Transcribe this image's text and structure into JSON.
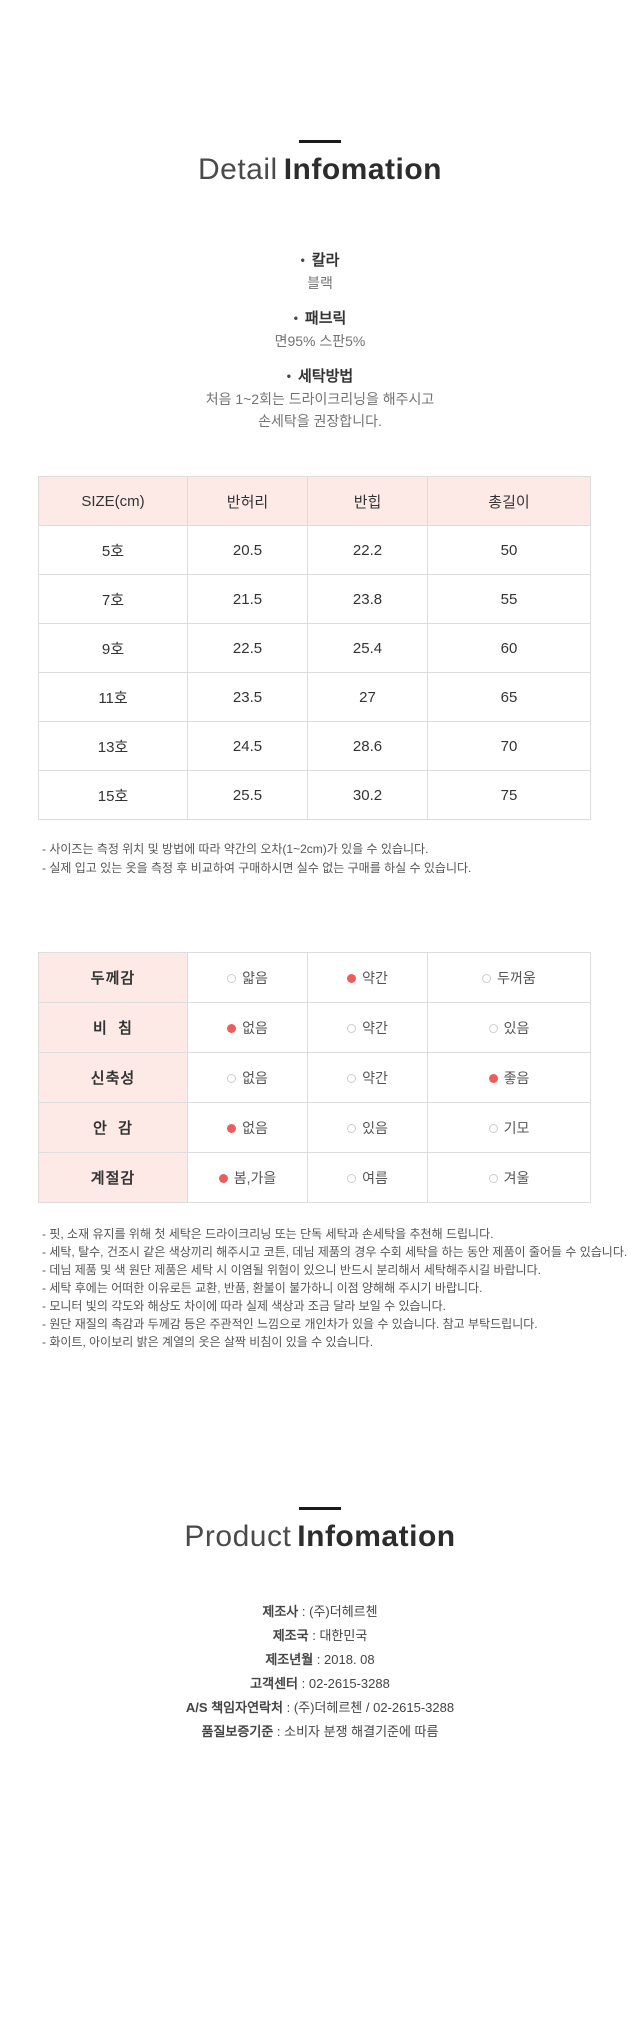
{
  "colors": {
    "header_pink": "#fdeae6",
    "dot_red": "#f05c5c",
    "border_gray": "#dddddd"
  },
  "detail_section": {
    "title": {
      "light": "Detail",
      "bold": "Infomation"
    },
    "bullet_char": "•",
    "items": [
      {
        "label": "칼라",
        "values": [
          "블랙"
        ]
      },
      {
        "label": "패브릭",
        "values": [
          "면95% 스판5%"
        ]
      },
      {
        "label": "세탁방법",
        "values": [
          "처음 1~2회는 드라이크리닝을 해주시고",
          "손세탁을 권장합니다."
        ]
      }
    ]
  },
  "size_table": {
    "headers": [
      "SIZE(cm)",
      "반허리",
      "반힙",
      "총길이"
    ],
    "rows": [
      [
        "5호",
        "20.5",
        "22.2",
        "50"
      ],
      [
        "7호",
        "21.5",
        "23.8",
        "55"
      ],
      [
        "9호",
        "22.5",
        "25.4",
        "60"
      ],
      [
        "11호",
        "23.5",
        "27",
        "65"
      ],
      [
        "13호",
        "24.5",
        "28.6",
        "70"
      ],
      [
        "15호",
        "25.5",
        "30.2",
        "75"
      ]
    ],
    "notes": [
      "- 사이즈는 측정 위치 및 방법에 따라 약간의 오차(1~2cm)가 있을 수 있습니다.",
      "- 실제 입고 있는 옷을 측정 후 비교하여 구매하시면 실수 없는 구매를 하실 수 있습니다."
    ]
  },
  "attribute_table": {
    "rows": [
      {
        "label": "두께감",
        "options": [
          {
            "text": "얇음",
            "selected": false
          },
          {
            "text": "약간",
            "selected": true
          },
          {
            "text": "두꺼움",
            "selected": false
          }
        ]
      },
      {
        "label": "비  침",
        "options": [
          {
            "text": "없음",
            "selected": true
          },
          {
            "text": "약간",
            "selected": false
          },
          {
            "text": "있음",
            "selected": false
          }
        ]
      },
      {
        "label": "신축성",
        "options": [
          {
            "text": "없음",
            "selected": false
          },
          {
            "text": "약간",
            "selected": false
          },
          {
            "text": "좋음",
            "selected": true
          }
        ]
      },
      {
        "label": "안  감",
        "options": [
          {
            "text": "없음",
            "selected": true
          },
          {
            "text": "있음",
            "selected": false
          },
          {
            "text": "기모",
            "selected": false
          }
        ]
      },
      {
        "label": "계절감",
        "options": [
          {
            "text": "봄,가을",
            "selected": true
          },
          {
            "text": "여름",
            "selected": false
          },
          {
            "text": "겨울",
            "selected": false
          }
        ]
      }
    ]
  },
  "care_notes": [
    "- 핏, 소재 유지를 위해 첫 세탁은 드라이크리닝 또는 단독 세탁과 손세탁을 추천해 드립니다.",
    "- 세탁, 탈수, 건조시 같은 색상끼리 해주시고 코튼, 데님 제품의 경우 수회 세탁을 하는 동안 제품이 줄어들 수 있습니다.",
    "- 데님 제품 및 색 원단 제품은 세탁 시 이염될 위험이 있으니 반드시 분리해서 세탁해주시길 바랍니다.",
    "- 세탁 후에는 어떠한 이유로든 교환, 반품, 환불이 불가하니 이점 양해해 주시기 바랍니다.",
    "- 모니터 빛의 각도와 해상도 차이에 따라 실제 색상과 조금 달라 보일 수 있습니다.",
    "- 원단 재질의 촉감과 두께감 등은 주관적인 느낌으로 개인차가 있을 수 있습니다. 참고 부탁드립니다.",
    "- 화이트, 아이보리 밝은 계열의 옷은 살짝 비침이 있을 수 있습니다."
  ],
  "product_section": {
    "title": {
      "light": "Product",
      "bold": "Infomation"
    },
    "separator": " : ",
    "rows": [
      {
        "label": "제조사",
        "value": "(주)더헤르첸"
      },
      {
        "label": "제조국",
        "value": "대한민국"
      },
      {
        "label": "제조년월",
        "value": "2018. 08"
      },
      {
        "label": "고객센터",
        "value": "02-2615-3288"
      },
      {
        "label": "A/S 책임자연락처",
        "value": "(주)더헤르첸 / 02-2615-3288"
      },
      {
        "label": "품질보증기준",
        "value": "소비자 분쟁 해결기준에 따름"
      }
    ]
  }
}
